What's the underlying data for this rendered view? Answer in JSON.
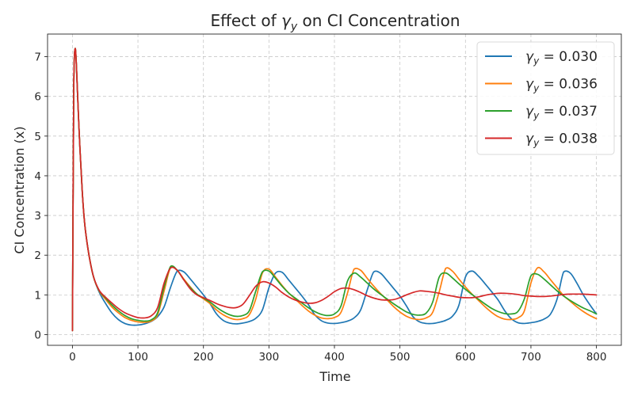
{
  "chart_data": {
    "type": "line",
    "title": "Effect of γy on CI Concentration",
    "title_prefix": "Effect of ",
    "title_symbol": "γ",
    "title_subscript": "y",
    "title_suffix": " on CI Concentration",
    "xlabel": "Time",
    "ylabel": "CI Concentration (x)",
    "xlim": [
      -38,
      838
    ],
    "ylim": [
      -0.27,
      7.57
    ],
    "x_ticks": [
      0,
      100,
      200,
      300,
      400,
      500,
      600,
      700,
      800
    ],
    "y_ticks": [
      0,
      1,
      2,
      3,
      4,
      5,
      6,
      7
    ],
    "grid": true,
    "legend_position": "top-right",
    "series": [
      {
        "name": "γy = 0.030",
        "label_symbol": "γ",
        "label_subscript": "y",
        "label_value": " = 0.030",
        "color": "#1f77b4",
        "x": [
          0,
          2,
          4,
          6,
          10,
          15,
          20,
          30,
          40,
          50,
          60,
          70,
          80,
          90,
          100,
          110,
          120,
          130,
          140,
          150,
          160,
          170,
          180,
          190,
          200,
          210,
          220,
          230,
          240,
          250,
          260,
          270,
          280,
          290,
          300,
          310,
          320,
          330,
          340,
          350,
          360,
          370,
          380,
          390,
          400,
          410,
          420,
          430,
          440,
          450,
          460,
          470,
          480,
          490,
          500,
          510,
          520,
          530,
          540,
          550,
          560,
          570,
          580,
          590,
          600,
          610,
          620,
          630,
          640,
          650,
          660,
          670,
          680,
          690,
          700,
          710,
          720,
          730,
          740,
          750,
          760,
          770,
          780,
          790,
          800
        ],
        "y": [
          0.1,
          6.2,
          7.2,
          6.8,
          5.2,
          3.6,
          2.6,
          1.6,
          1.1,
          0.8,
          0.55,
          0.38,
          0.28,
          0.24,
          0.24,
          0.27,
          0.33,
          0.45,
          0.7,
          1.2,
          1.6,
          1.58,
          1.4,
          1.2,
          1.0,
          0.78,
          0.52,
          0.36,
          0.29,
          0.27,
          0.29,
          0.33,
          0.41,
          0.62,
          1.18,
          1.55,
          1.57,
          1.38,
          1.18,
          0.98,
          0.76,
          0.5,
          0.35,
          0.29,
          0.28,
          0.3,
          0.34,
          0.42,
          0.62,
          1.12,
          1.58,
          1.55,
          1.37,
          1.17,
          0.97,
          0.72,
          0.45,
          0.32,
          0.28,
          0.28,
          0.31,
          0.36,
          0.46,
          0.74,
          1.45,
          1.6,
          1.47,
          1.28,
          1.08,
          0.87,
          0.6,
          0.4,
          0.3,
          0.28,
          0.3,
          0.33,
          0.39,
          0.52,
          0.9,
          1.58,
          1.55,
          1.3,
          1.0,
          0.75,
          0.52
        ]
      },
      {
        "name": "γy = 0.036",
        "label_symbol": "γ",
        "label_subscript": "y",
        "label_value": " = 0.036",
        "color": "#ff7f0e",
        "x": [
          0,
          2,
          4,
          6,
          10,
          15,
          20,
          30,
          40,
          50,
          60,
          70,
          80,
          90,
          100,
          110,
          120,
          130,
          140,
          150,
          160,
          170,
          180,
          190,
          200,
          210,
          220,
          230,
          240,
          250,
          260,
          270,
          280,
          290,
          300,
          310,
          320,
          330,
          340,
          350,
          360,
          370,
          380,
          390,
          400,
          410,
          420,
          430,
          440,
          450,
          460,
          470,
          480,
          490,
          500,
          510,
          520,
          530,
          540,
          550,
          560,
          570,
          580,
          590,
          600,
          610,
          620,
          630,
          640,
          650,
          660,
          670,
          680,
          690,
          700,
          710,
          720,
          730,
          740,
          750,
          760,
          770,
          780,
          790,
          800
        ],
        "y": [
          0.1,
          6.2,
          7.2,
          6.8,
          5.2,
          3.6,
          2.6,
          1.6,
          1.12,
          0.9,
          0.7,
          0.55,
          0.43,
          0.36,
          0.32,
          0.31,
          0.34,
          0.5,
          1.1,
          1.7,
          1.62,
          1.4,
          1.2,
          1.02,
          0.9,
          0.78,
          0.62,
          0.5,
          0.42,
          0.38,
          0.4,
          0.5,
          0.9,
          1.55,
          1.65,
          1.45,
          1.24,
          1.05,
          0.9,
          0.74,
          0.6,
          0.49,
          0.42,
          0.4,
          0.43,
          0.56,
          1.05,
          1.65,
          1.62,
          1.42,
          1.22,
          1.04,
          0.88,
          0.71,
          0.57,
          0.46,
          0.4,
          0.38,
          0.42,
          0.56,
          1.08,
          1.67,
          1.6,
          1.4,
          1.2,
          1.02,
          0.86,
          0.7,
          0.56,
          0.45,
          0.39,
          0.38,
          0.42,
          0.6,
          1.3,
          1.68,
          1.58,
          1.38,
          1.18,
          0.98,
          0.84,
          0.7,
          0.58,
          0.48,
          0.4
        ]
      },
      {
        "name": "γy = 0.037",
        "label_symbol": "γ",
        "label_subscript": "y",
        "label_value": " = 0.037",
        "color": "#2ca02c",
        "x": [
          0,
          2,
          4,
          6,
          10,
          15,
          20,
          30,
          40,
          50,
          60,
          70,
          80,
          90,
          100,
          110,
          120,
          130,
          140,
          150,
          160,
          170,
          180,
          190,
          200,
          210,
          220,
          230,
          240,
          250,
          260,
          270,
          280,
          290,
          300,
          310,
          320,
          330,
          340,
          350,
          360,
          370,
          380,
          390,
          400,
          410,
          420,
          430,
          440,
          450,
          460,
          470,
          480,
          490,
          500,
          510,
          520,
          530,
          540,
          550,
          560,
          570,
          580,
          590,
          600,
          610,
          620,
          630,
          640,
          650,
          660,
          670,
          680,
          690,
          700,
          710,
          720,
          730,
          740,
          750,
          760,
          770,
          780,
          790,
          800
        ],
        "y": [
          0.1,
          6.2,
          7.2,
          6.8,
          5.2,
          3.6,
          2.6,
          1.6,
          1.13,
          0.93,
          0.75,
          0.6,
          0.48,
          0.4,
          0.36,
          0.34,
          0.37,
          0.55,
          1.2,
          1.72,
          1.62,
          1.38,
          1.18,
          1.02,
          0.92,
          0.82,
          0.69,
          0.58,
          0.5,
          0.46,
          0.48,
          0.6,
          1.1,
          1.58,
          1.6,
          1.42,
          1.22,
          1.05,
          0.92,
          0.8,
          0.68,
          0.58,
          0.51,
          0.48,
          0.52,
          0.72,
          1.35,
          1.55,
          1.45,
          1.3,
          1.15,
          1.02,
          0.9,
          0.78,
          0.67,
          0.57,
          0.51,
          0.49,
          0.54,
          0.82,
          1.45,
          1.55,
          1.43,
          1.28,
          1.14,
          1.01,
          0.89,
          0.77,
          0.66,
          0.58,
          0.53,
          0.52,
          0.58,
          0.9,
          1.48,
          1.52,
          1.4,
          1.25,
          1.1,
          0.97,
          0.86,
          0.76,
          0.67,
          0.6,
          0.52
        ]
      },
      {
        "name": "γy = 0.038",
        "label_symbol": "γ",
        "label_subscript": "y",
        "label_value": " = 0.038",
        "color": "#d62728",
        "x": [
          0,
          2,
          4,
          6,
          10,
          15,
          20,
          30,
          40,
          50,
          60,
          70,
          80,
          90,
          100,
          110,
          120,
          130,
          140,
          150,
          160,
          170,
          180,
          190,
          200,
          210,
          220,
          230,
          240,
          250,
          260,
          270,
          280,
          290,
          300,
          310,
          320,
          330,
          340,
          350,
          360,
          370,
          380,
          390,
          400,
          410,
          420,
          430,
          440,
          450,
          460,
          470,
          480,
          490,
          500,
          510,
          520,
          530,
          540,
          550,
          560,
          570,
          580,
          590,
          600,
          610,
          620,
          630,
          640,
          650,
          660,
          670,
          680,
          690,
          700,
          710,
          720,
          730,
          740,
          750,
          760,
          770,
          780,
          790,
          800
        ],
        "y": [
          0.1,
          6.2,
          7.2,
          6.8,
          5.2,
          3.6,
          2.6,
          1.6,
          1.14,
          0.95,
          0.8,
          0.66,
          0.55,
          0.48,
          0.43,
          0.42,
          0.47,
          0.68,
          1.3,
          1.68,
          1.62,
          1.38,
          1.15,
          1.0,
          0.93,
          0.86,
          0.78,
          0.72,
          0.68,
          0.68,
          0.76,
          0.98,
          1.22,
          1.33,
          1.3,
          1.2,
          1.06,
          0.95,
          0.87,
          0.82,
          0.79,
          0.8,
          0.86,
          0.96,
          1.08,
          1.16,
          1.17,
          1.13,
          1.06,
          0.98,
          0.92,
          0.88,
          0.87,
          0.88,
          0.93,
          1.0,
          1.06,
          1.1,
          1.09,
          1.07,
          1.04,
          1.0,
          0.97,
          0.94,
          0.93,
          0.93,
          0.95,
          0.99,
          1.02,
          1.04,
          1.04,
          1.03,
          1.01,
          0.98,
          0.97,
          0.96,
          0.96,
          0.97,
          0.99,
          1.01,
          1.02,
          1.02,
          1.02,
          1.01,
          1.0
        ]
      }
    ]
  }
}
